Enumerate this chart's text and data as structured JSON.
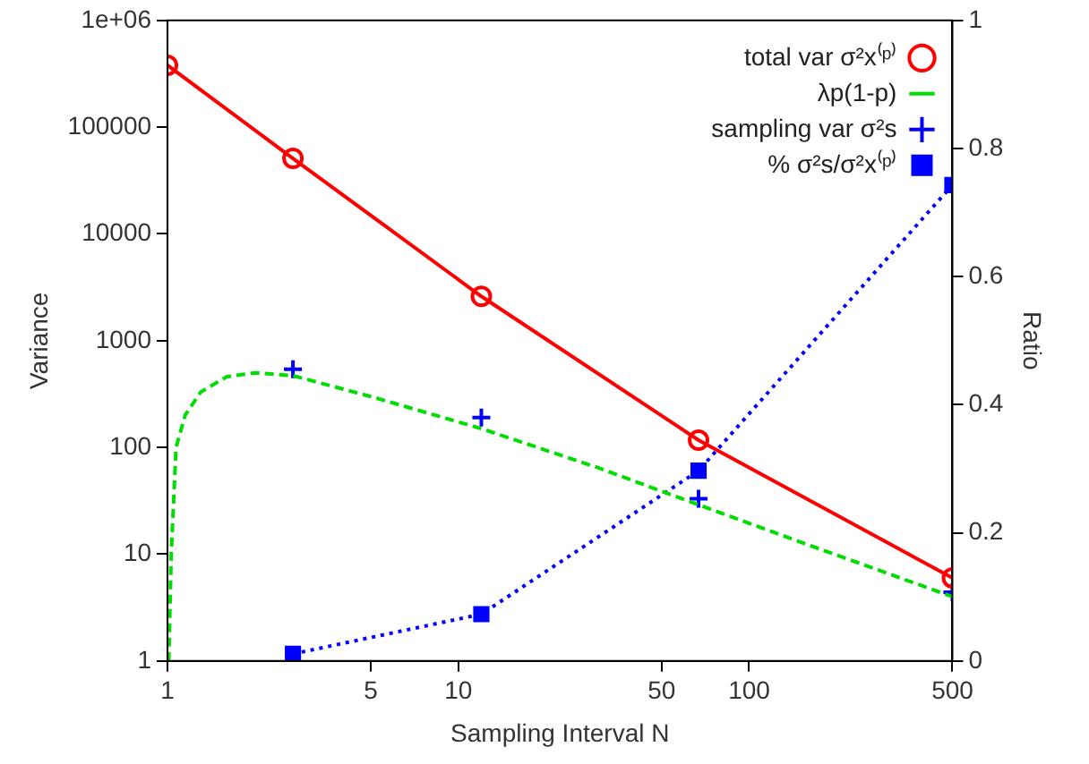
{
  "chart_data": {
    "type": "line",
    "xlabel": "Sampling Interval N",
    "ylabel": "Variance",
    "y2label": "Ratio",
    "log": "xy",
    "xlim": [
      1,
      500
    ],
    "xticks": [
      1,
      5,
      10,
      50,
      100,
      500
    ],
    "ylim": [
      1,
      1000000
    ],
    "yticks": [
      1,
      10,
      100,
      1000,
      10000,
      100000,
      {
        "value": 1000000,
        "label": "1e+06"
      }
    ],
    "y2lim": [
      0,
      1
    ],
    "y2ticks": [
      0,
      0.2,
      0.4,
      0.6,
      0.8,
      1
    ],
    "grid": false,
    "legend": "top right",
    "series": [
      {
        "name": "total var σ²x⁽ᵖ⁾",
        "color": "#ff0000",
        "marker": "circle",
        "line_style": "solid",
        "x": [
          1,
          2.7,
          12,
          67,
          500
        ],
        "values": [
          380000,
          51000,
          2600,
          117,
          6
        ]
      },
      {
        "name": "λp(1-p)",
        "color": "#00dd00",
        "marker": "none",
        "line_style": "dashed",
        "x": [
          1.01,
          1.03,
          1.07,
          1.15,
          1.3,
          1.6,
          2,
          2.7,
          5,
          12,
          30,
          67,
          150,
          500
        ],
        "values": [
          1,
          10,
          100,
          200,
          330,
          460,
          500,
          470,
          300,
          150,
          65,
          29,
          13,
          4
        ]
      },
      {
        "name": "sampling var σ²s",
        "type": "scatter",
        "color": "#0000ff",
        "marker": "cross",
        "x": [
          2.7,
          12,
          67,
          500
        ],
        "values": [
          540,
          190,
          33,
          4.4
        ]
      },
      {
        "name": "% σ²s/σ²x⁽ᵖ⁾",
        "axis": "y2",
        "color": "#0000ff",
        "marker": "square",
        "line_style": "dotted",
        "x": [
          2.7,
          12,
          67,
          500
        ],
        "values": [
          0.011,
          0.073,
          0.297,
          0.743
        ]
      }
    ]
  }
}
